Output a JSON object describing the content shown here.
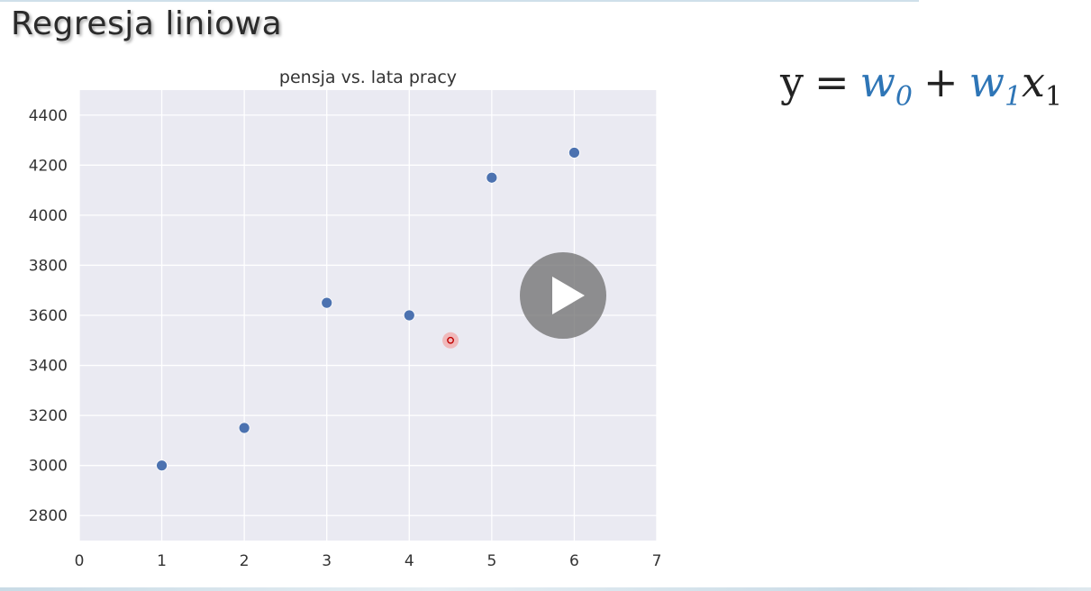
{
  "slide": {
    "title": "Regresja liniowa"
  },
  "formula": {
    "y": "y",
    "eq": "=",
    "w0": "w",
    "w0_sub": "0",
    "plus": "+",
    "w1": "w",
    "w1_sub": "1",
    "x1": "x",
    "x1_sub": "1",
    "weight_color": "#2e75b6"
  },
  "player": {
    "play_icon": "play-icon"
  },
  "cursor": {
    "icon": "cursor-highlight-icon",
    "x": 4.5,
    "y": 3500,
    "color": "#ff3b30"
  },
  "chart_data": {
    "type": "scatter",
    "title": "pensja vs. lata pracy",
    "xlabel": "",
    "ylabel": "",
    "x": [
      1,
      2,
      3,
      4,
      5,
      6
    ],
    "y": [
      3000,
      3150,
      3650,
      3600,
      4150,
      4250
    ],
    "xlim": [
      0,
      7
    ],
    "ylim": [
      2700,
      4500
    ],
    "xticks": [
      "0",
      "1",
      "2",
      "3",
      "4",
      "5",
      "6",
      "7"
    ],
    "yticks": [
      "2800",
      "3000",
      "3200",
      "3400",
      "3600",
      "3800",
      "4000",
      "4200",
      "4400"
    ],
    "grid": true,
    "colors": {
      "background": "#eaeaf2",
      "grid": "#ffffff",
      "point": "#4c72b0",
      "text": "#333333"
    }
  }
}
